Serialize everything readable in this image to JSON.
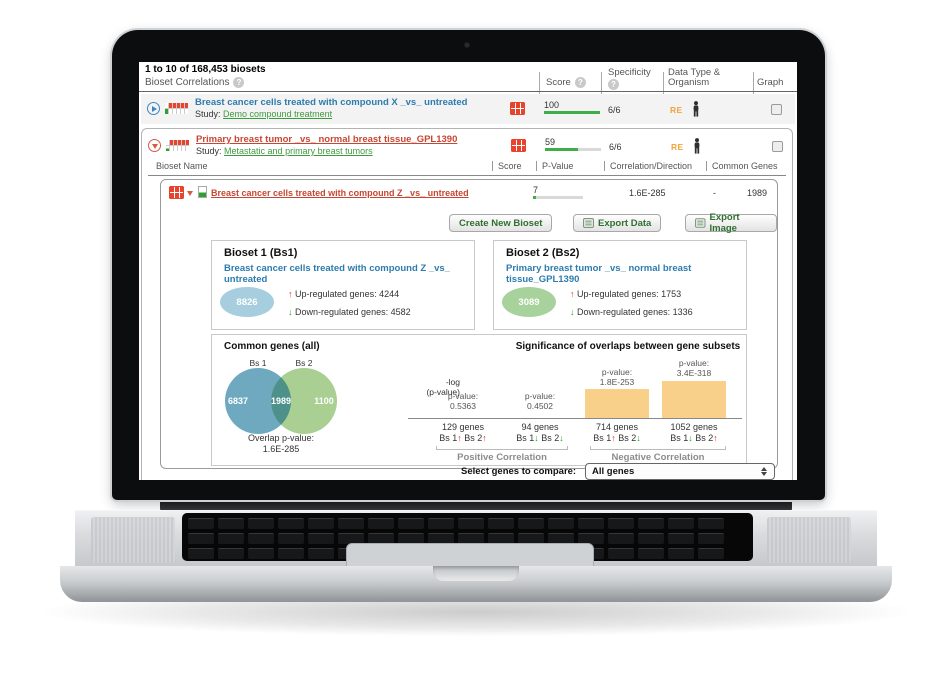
{
  "icons": {
    "help": "?",
    "up_arrow": "↑",
    "down_arrow": "↓"
  },
  "window": {
    "results_summary": "1 to 10 of 168,453 biosets"
  },
  "table": {
    "title": "Bioset Correlations",
    "columns": {
      "score": "Score",
      "specificity": "Specificity",
      "data_type": "Data Type & Organism",
      "graph": "Graph"
    }
  },
  "rows": [
    {
      "title": "Breast cancer cells treated with compound X _vs_ untreated",
      "study_label": "Study:",
      "study": "Demo compound treatment",
      "score": "100",
      "score_pct": 100,
      "specificity": "6/6",
      "data_type_badge": "RE",
      "organism": "human",
      "expanded": false
    },
    {
      "title": "Primary breast tumor _vs_ normal breast tissue_GPL1390",
      "study_label": "Study:",
      "study": "Metastatic and primary breast tumors",
      "score": "59",
      "score_pct": 59,
      "specificity": "6/6",
      "data_type_badge": "RE",
      "organism": "human",
      "expanded": true
    }
  ],
  "subtable": {
    "headers": {
      "name": "Bioset Name",
      "score": "Score",
      "p_value": "P-Value",
      "correlation": "Correlation/Direction",
      "common_genes": "Common Genes"
    },
    "row": {
      "name": "Breast cancer cells treated with compound Z _vs_ untreated",
      "score": "7",
      "score_pct": 6,
      "p_value": "1.6E-285",
      "correlation": "-",
      "common_genes": "1989"
    }
  },
  "toolbar": {
    "create_new_bioset": "Create New Bioset",
    "export_data": "Export Data",
    "export_image": "Export Image"
  },
  "bioset1": {
    "heading": "Bioset 1 (Bs1)",
    "title": "Breast cancer cells treated with compound Z _vs_ untreated",
    "total_genes": "8826",
    "up_label": "Up-regulated genes:",
    "up_value": "4244",
    "down_label": "Down-regulated genes:",
    "down_value": "4582"
  },
  "bioset2": {
    "heading": "Bioset 2 (Bs2)",
    "title": "Primary breast tumor _vs_ normal breast tissue_GPL1390",
    "total_genes": "3089",
    "up_label": "Up-regulated genes:",
    "up_value": "1753",
    "down_label": "Down-regulated genes:",
    "down_value": "1336"
  },
  "venn": {
    "heading": "Common genes (all)",
    "bs1_label": "Bs 1",
    "bs2_label": "Bs 2",
    "bs1_only": "6837",
    "overlap": "1989",
    "bs2_only": "1100",
    "overlap_p_label": "Overlap p-value:",
    "overlap_p_value": "1.6E-285",
    "colors": {
      "bs1": "#6fa9c0",
      "bs2": "#a9cf92",
      "overlap": "#4e918b"
    }
  },
  "chart_data": {
    "type": "bar",
    "title": "Significance of overlaps between gene subsets",
    "ylabel": "-log (p-value)",
    "ylabel_line1": "-log",
    "ylabel_line2": "(p-value)",
    "p_label": "p-value:",
    "ymax": 700,
    "bar_color": "#f9d089",
    "series_labels": {
      "bs1": "Bs 1",
      "bs2": "Bs 2"
    },
    "bars": [
      {
        "p_value": "0.5363",
        "neg_log10_p": 0.27,
        "genes": "129 genes",
        "bs1_dir": "up",
        "bs2_dir": "up",
        "group": "Positive Correlation"
      },
      {
        "p_value": "0.4502",
        "neg_log10_p": 0.35,
        "genes": "94 genes",
        "bs1_dir": "down",
        "bs2_dir": "down",
        "group": "Positive Correlation"
      },
      {
        "p_value": "1.8E-253",
        "neg_log10_p": 252.7,
        "genes": "714 genes",
        "bs1_dir": "up",
        "bs2_dir": "down",
        "group": "Negative Correlation"
      },
      {
        "p_value": "3.4E-318",
        "neg_log10_p": 317.5,
        "genes": "1052 genes",
        "bs1_dir": "down",
        "bs2_dir": "up",
        "group": "Negative Correlation"
      }
    ],
    "groups": [
      "Positive Correlation",
      "Negative Correlation"
    ]
  },
  "footer": {
    "label": "Select genes to compare:",
    "dropdown_value": "All genes"
  },
  "colors": {
    "accent_blue": "#2d7cad",
    "link_red": "#c74634",
    "link_green": "#3e9a3e",
    "badge_orange": "#f2a33c",
    "score_green": "#3fae49",
    "bar_orange": "#f9d089"
  }
}
